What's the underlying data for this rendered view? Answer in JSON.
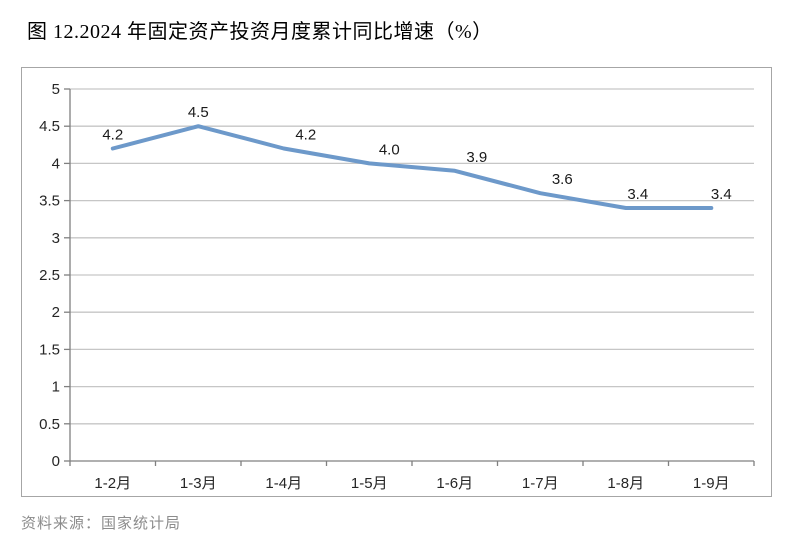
{
  "title": "图 12.2024 年固定资产投资月度累计同比增速（%）",
  "source": "资料来源：国家统计局",
  "colors": {
    "line": "#6d99ca",
    "grid": "#c6c6c6",
    "axis": "#808080",
    "tick_text": "#262626",
    "value_label": "#1a1a1a",
    "frame_border": "#a6a6a6",
    "source_text": "#8c8c8c",
    "background": "#ffffff"
  },
  "chart_data": {
    "type": "line",
    "title": "图 12.2024 年固定资产投资月度累计同比增速（%）",
    "categories": [
      "1-2月",
      "1-3月",
      "1-4月",
      "1-5月",
      "1-6月",
      "1-7月",
      "1-8月",
      "1-9月"
    ],
    "series": [
      {
        "name": "固定资产投资月度累计同比增速(%)",
        "values": [
          4.2,
          4.5,
          4.2,
          4.0,
          3.9,
          3.6,
          3.4,
          3.4
        ]
      }
    ],
    "value_labels": [
      "4.2",
      "4.5",
      "4.2",
      "4.0",
      "3.9",
      "3.6",
      "3.4",
      "3.4"
    ],
    "xlabel": "",
    "ylabel": "",
    "ylim": [
      0,
      5
    ],
    "ytick_step": 0.5,
    "ytick_labels": [
      "0",
      "0.5",
      "1",
      "1.5",
      "2",
      "2.5",
      "3",
      "3.5",
      "4",
      "4.5",
      "5"
    ],
    "grid": "horizontal",
    "legend": "none",
    "data_labels": "above-points",
    "source": "资料来源：国家统计局"
  }
}
